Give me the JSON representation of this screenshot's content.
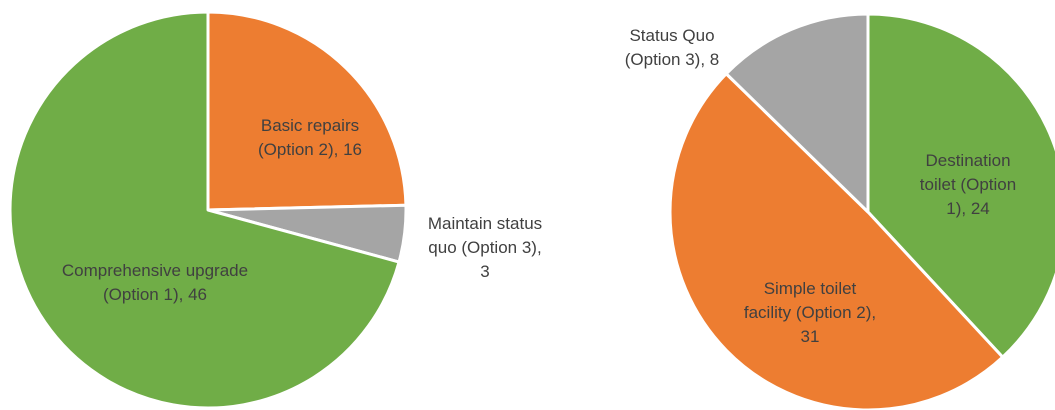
{
  "chart_data": [
    {
      "type": "pie",
      "categories": [
        "Basic repairs (Option 2)",
        "Maintain status quo (Option 3)",
        "Comprehensive upgrade (Option 1)"
      ],
      "values": [
        16,
        3,
        46
      ],
      "colors": [
        "#ed7d31",
        "#a5a5a5",
        "#70ad47"
      ],
      "label_separator": ", "
    },
    {
      "type": "pie",
      "categories": [
        "Destination toilet (Option 1)",
        "Simple toilet facility (Option 2)",
        "Status Quo (Option 3)"
      ],
      "values": [
        24,
        31,
        8
      ],
      "colors": [
        "#70ad47",
        "#ed7d31",
        "#a5a5a5"
      ],
      "label_separator": ", "
    }
  ]
}
